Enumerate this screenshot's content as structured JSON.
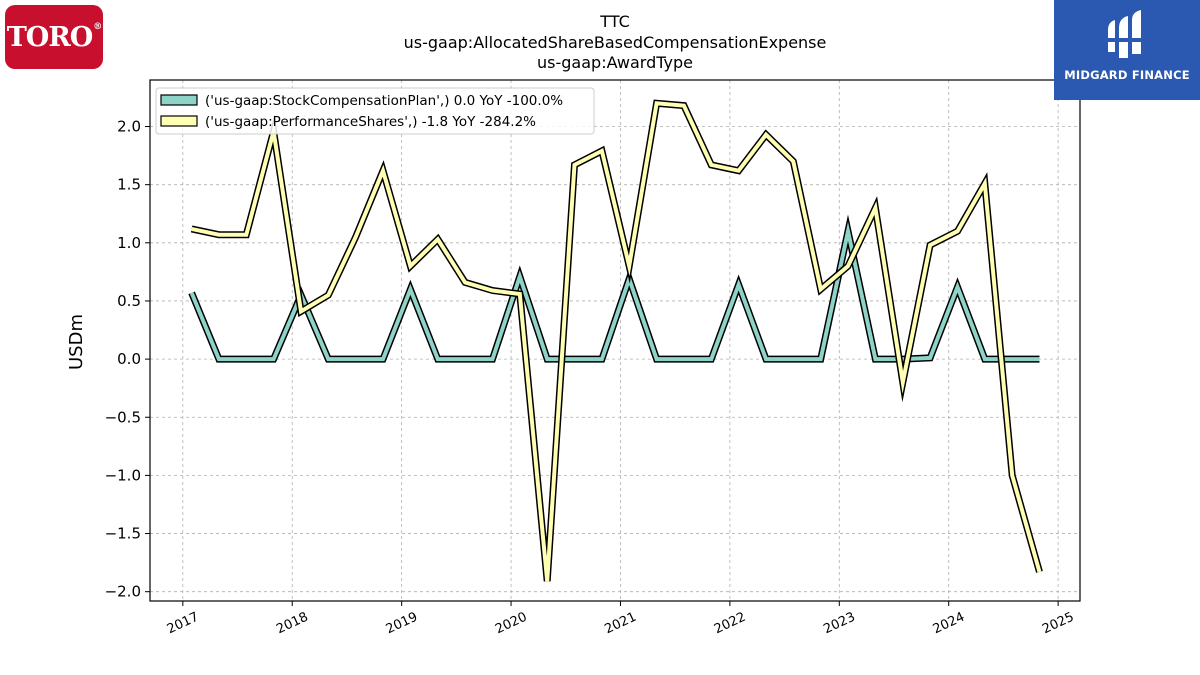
{
  "logos": {
    "left": {
      "text": "TORO",
      "mark": "®",
      "bg": "#c8102e"
    },
    "right": {
      "text": "MIDGARD FINANCE",
      "bg": "#2b58b0"
    }
  },
  "chart_data": {
    "type": "line",
    "title": [
      "TTC",
      "us-gaap:AllocatedShareBasedCompensationExpense",
      "us-gaap:AwardType"
    ],
    "xlabel": "",
    "ylabel": "USDm",
    "xlim": [
      2016.7,
      2025.2
    ],
    "ylim": [
      -2.08,
      2.4
    ],
    "xticks": [
      2017,
      2018,
      2019,
      2020,
      2021,
      2022,
      2023,
      2024,
      2025
    ],
    "xtick_labels": [
      "2017",
      "2018",
      "2019",
      "2020",
      "2021",
      "2022",
      "2023",
      "2024",
      "2025"
    ],
    "yticks": [
      -2.0,
      -1.5,
      -1.0,
      -0.5,
      0.0,
      0.5,
      1.0,
      1.5,
      2.0
    ],
    "ytick_labels": [
      "−2.0",
      "−1.5",
      "−1.0",
      "−0.5",
      "0.0",
      "0.5",
      "1.0",
      "1.5",
      "2.0"
    ],
    "grid": true,
    "legend_position": "top-left",
    "series": [
      {
        "name": "('us-gaap:StockCompensationPlan',) 0.0 YoY -100.0%",
        "color": "#8dd3c7",
        "x": [
          2017.08,
          2017.33,
          2017.58,
          2017.83,
          2018.08,
          2018.33,
          2018.58,
          2018.83,
          2019.08,
          2019.33,
          2019.58,
          2019.83,
          2020.08,
          2020.33,
          2020.58,
          2020.83,
          2021.08,
          2021.33,
          2021.58,
          2021.83,
          2022.08,
          2022.33,
          2022.58,
          2022.83,
          2023.08,
          2023.33,
          2023.58,
          2023.83,
          2024.08,
          2024.33,
          2024.58,
          2024.83
        ],
        "y": [
          0.57,
          0.0,
          0.0,
          0.0,
          0.55,
          0.0,
          0.0,
          0.0,
          0.6,
          0.0,
          0.0,
          0.0,
          0.71,
          0.0,
          0.0,
          0.0,
          0.69,
          0.0,
          0.0,
          0.0,
          0.64,
          0.0,
          0.0,
          0.0,
          1.1,
          0.0,
          0.0,
          0.01,
          0.62,
          0.0,
          0.0,
          0.0
        ]
      },
      {
        "name": "('us-gaap:PerformanceShares',) -1.8 YoY -284.2%",
        "color": "#ffffb3",
        "x": [
          2017.08,
          2017.33,
          2017.58,
          2017.83,
          2018.08,
          2018.33,
          2018.58,
          2018.83,
          2019.08,
          2019.33,
          2019.58,
          2019.83,
          2020.08,
          2020.33,
          2020.58,
          2020.83,
          2021.08,
          2021.33,
          2021.58,
          2021.83,
          2022.08,
          2022.33,
          2022.58,
          2022.83,
          2023.08,
          2023.33,
          2023.58,
          2023.83,
          2024.08,
          2024.33,
          2024.58,
          2024.83
        ],
        "y": [
          1.12,
          1.07,
          1.07,
          1.96,
          0.41,
          0.55,
          1.05,
          1.62,
          0.8,
          1.03,
          0.66,
          0.59,
          0.56,
          -1.91,
          1.67,
          1.79,
          0.8,
          2.2,
          2.18,
          1.67,
          1.62,
          1.93,
          1.7,
          0.6,
          0.8,
          1.3,
          -0.2,
          0.98,
          1.1,
          1.51,
          -1.0,
          -1.83
        ]
      }
    ]
  }
}
